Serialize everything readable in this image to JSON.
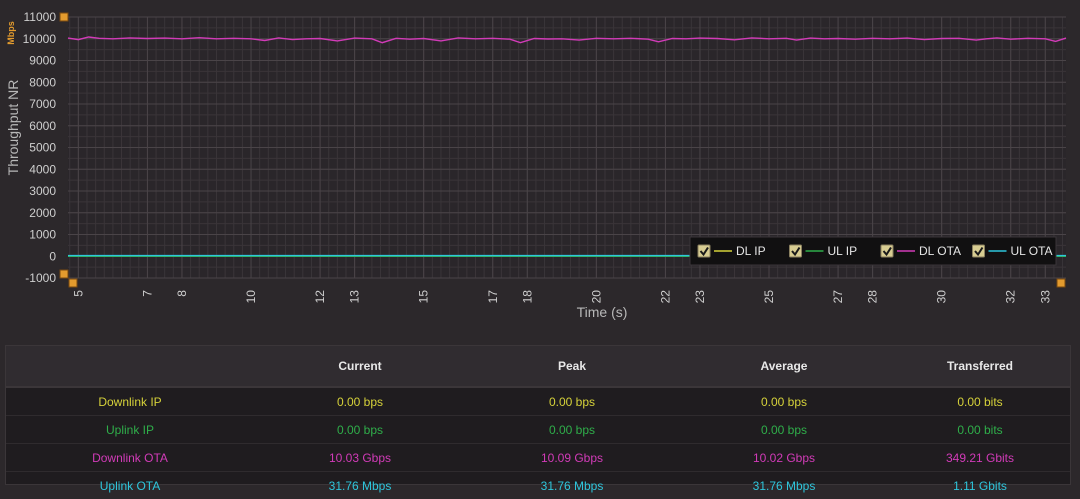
{
  "colors": {
    "dl_ip": "#d6d23a",
    "ul_ip": "#2fae4a",
    "dl_ota": "#d23bb8",
    "ul_ota": "#2ec6dc",
    "handle": "#e39b2e"
  },
  "chart_data": {
    "type": "line",
    "ylabel": "Throughput NR",
    "yunit": "Mbps",
    "xlabel": "Time (s)",
    "ylim": [
      -1000,
      11000
    ],
    "xlim": [
      4.7,
      33.6
    ],
    "yticks": [
      "-1000",
      "0",
      "1000",
      "2000",
      "3000",
      "4000",
      "5000",
      "6000",
      "7000",
      "8000",
      "9000",
      "10000",
      "11000"
    ],
    "xticks": [
      {
        "value": 5,
        "label": "5"
      },
      {
        "value": 7,
        "label": "7"
      },
      {
        "value": 8,
        "label": "8"
      },
      {
        "value": 10,
        "label": "10"
      },
      {
        "value": 12,
        "label": "12"
      },
      {
        "value": 13,
        "label": "13"
      },
      {
        "value": 15,
        "label": "15"
      },
      {
        "value": 17,
        "label": "17"
      },
      {
        "value": 18,
        "label": "18"
      },
      {
        "value": 20,
        "label": "20"
      },
      {
        "value": 22,
        "label": "22"
      },
      {
        "value": 23,
        "label": "23"
      },
      {
        "value": 25,
        "label": "25"
      },
      {
        "value": 27,
        "label": "27"
      },
      {
        "value": 28,
        "label": "28"
      },
      {
        "value": 30,
        "label": "30"
      },
      {
        "value": 32,
        "label": "32"
      },
      {
        "value": 33,
        "label": "33"
      }
    ],
    "grid": true,
    "legend_position": "bottom-right",
    "series": [
      {
        "name": "DL IP",
        "color_key": "dl_ip",
        "x": [
          4.7,
          33.6
        ],
        "y": [
          0,
          0
        ]
      },
      {
        "name": "UL IP",
        "color_key": "ul_ip",
        "x": [
          4.7,
          33.6
        ],
        "y": [
          0,
          0
        ]
      },
      {
        "name": "DL OTA",
        "color_key": "dl_ota",
        "x": [
          4.7,
          5.0,
          5.3,
          5.6,
          6.0,
          6.5,
          7.0,
          7.5,
          8.0,
          8.5,
          9.0,
          9.5,
          10.0,
          10.4,
          10.8,
          11.2,
          11.6,
          12.0,
          12.5,
          13.0,
          13.5,
          13.8,
          14.2,
          14.6,
          15.0,
          15.5,
          16.0,
          16.5,
          17.0,
          17.5,
          17.8,
          18.2,
          18.6,
          19.0,
          19.5,
          20.0,
          20.5,
          21.0,
          21.5,
          21.8,
          22.2,
          22.6,
          23.0,
          23.5,
          24.0,
          24.5,
          25.0,
          25.5,
          25.8,
          26.2,
          26.6,
          27.0,
          27.5,
          28.0,
          28.5,
          29.0,
          29.5,
          30.0,
          30.5,
          31.0,
          31.3,
          31.6,
          32.0,
          32.5,
          33.0,
          33.3,
          33.6
        ],
        "y": [
          10030,
          9960,
          10080,
          10020,
          10000,
          10040,
          10010,
          10030,
          10000,
          10050,
          10000,
          10020,
          10000,
          9920,
          10040,
          9960,
          10000,
          10010,
          9900,
          10030,
          10000,
          9820,
          10020,
          9980,
          10010,
          9900,
          10040,
          10000,
          10020,
          9980,
          9820,
          10010,
          9990,
          10000,
          9940,
          10020,
          10000,
          10020,
          9980,
          9860,
          10010,
          10000,
          10030,
          10010,
          9950,
          10040,
          10000,
          10020,
          9940,
          10030,
          10000,
          10010,
          9980,
          10020,
          10000,
          10030,
          9960,
          10010,
          10020,
          9940,
          10000,
          10040,
          9980,
          10020,
          10000,
          9880,
          10030
        ]
      },
      {
        "name": "UL OTA",
        "color_key": "ul_ota",
        "x": [
          4.7,
          33.6
        ],
        "y": [
          31.76,
          31.76
        ]
      }
    ]
  },
  "stats": {
    "headers": [
      "",
      "Current",
      "Peak",
      "Average",
      "Transferred"
    ],
    "rows": [
      {
        "name": "Downlink IP",
        "color_key": "dl_ip",
        "current": "0.00 bps",
        "peak": "0.00 bps",
        "average": "0.00 bps",
        "transferred": "0.00 bits"
      },
      {
        "name": "Uplink IP",
        "color_key": "ul_ip",
        "current": "0.00 bps",
        "peak": "0.00 bps",
        "average": "0.00 bps",
        "transferred": "0.00 bits"
      },
      {
        "name": "Downlink OTA",
        "color_key": "dl_ota",
        "current": "10.03 Gbps",
        "peak": "10.09 Gbps",
        "average": "10.02 Gbps",
        "transferred": "349.21 Gbits"
      },
      {
        "name": "Uplink OTA",
        "color_key": "ul_ota",
        "current": "31.76 Mbps",
        "peak": "31.76 Mbps",
        "average": "31.76 Mbps",
        "transferred": "1.11 Gbits"
      }
    ]
  }
}
